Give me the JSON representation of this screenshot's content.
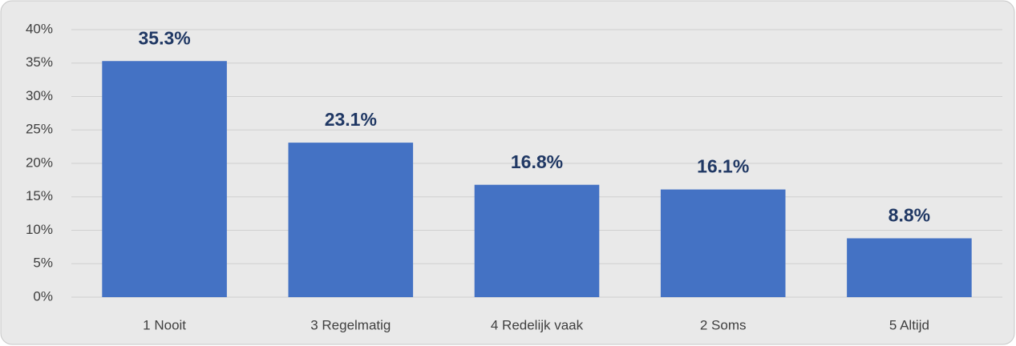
{
  "chart_data": {
    "type": "bar",
    "categories": [
      "1 Nooit",
      "3 Regelmatig",
      "4 Redelijk vaak",
      "2 Soms",
      "5 Altijd"
    ],
    "values": [
      35.3,
      23.1,
      16.8,
      16.1,
      8.8
    ],
    "value_labels": [
      "35.3%",
      "23.1%",
      "16.8%",
      "16.1%",
      "8.8%"
    ],
    "color": "#4472c4",
    "ylim": [
      0,
      40
    ],
    "yticks": [
      {
        "value": 0,
        "label": "0%"
      },
      {
        "value": 5,
        "label": "5%"
      },
      {
        "value": 10,
        "label": "10%"
      },
      {
        "value": 15,
        "label": "15%"
      },
      {
        "value": 20,
        "label": "20%"
      },
      {
        "value": 25,
        "label": "25%"
      },
      {
        "value": 30,
        "label": "30%"
      },
      {
        "value": 35,
        "label": "35%"
      },
      {
        "value": 40,
        "label": "40%"
      }
    ],
    "grid": true
  }
}
